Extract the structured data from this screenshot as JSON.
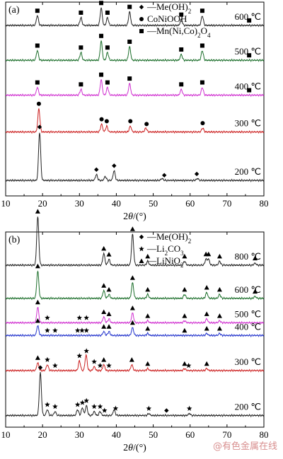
{
  "watermark": "@有色金属在线",
  "chart_data": [
    {
      "type": "line",
      "panel": "(a)",
      "xlabel_prefix": "2",
      "xlabel_theta": "θ",
      "xlabel_suffix": "/(°)",
      "xlim": [
        10,
        80
      ],
      "xticks": [
        10,
        20,
        30,
        40,
        50,
        60,
        70,
        80
      ],
      "legend": [
        {
          "marker": "diamond",
          "label": "—Me(OH)",
          "sub": "2",
          "tail": ""
        },
        {
          "marker": "circle",
          "label": "CoNiOOH",
          "sub": "",
          "tail": ""
        },
        {
          "marker": "square",
          "label": "—Mn(Ni,Co)",
          "sub": "2",
          "tail": "O",
          "sub2": "4"
        }
      ],
      "series": [
        {
          "name": "600 ℃",
          "color": "#222222",
          "baseline": 0.88,
          "peaks": [
            [
              18.6,
              0.05
            ],
            [
              30.4,
              0.04
            ],
            [
              35.9,
              0.09
            ],
            [
              37.6,
              0.04
            ],
            [
              43.6,
              0.07
            ],
            [
              57.6,
              0.03
            ],
            [
              63.3,
              0.05
            ]
          ],
          "markers": {
            "type": "square",
            "x": [
              18.6,
              30.4,
              35.9,
              37.6,
              43.6,
              57.6,
              63.3,
              76.0
            ]
          }
        },
        {
          "name": "500 ℃",
          "color": "#1b6e2a",
          "baseline": 0.7,
          "peaks": [
            [
              18.6,
              0.05
            ],
            [
              30.4,
              0.04
            ],
            [
              35.9,
              0.1
            ],
            [
              37.6,
              0.04
            ],
            [
              43.6,
              0.07
            ],
            [
              57.6,
              0.03
            ],
            [
              63.3,
              0.05
            ]
          ],
          "markers": {
            "type": "square",
            "x": [
              18.6,
              30.4,
              35.9,
              37.6,
              43.6,
              57.6,
              63.3,
              76.0
            ]
          }
        },
        {
          "name": "400 ℃",
          "color": "#d030d0",
          "baseline": 0.52,
          "peaks": [
            [
              18.6,
              0.04
            ],
            [
              30.4,
              0.03
            ],
            [
              35.9,
              0.08
            ],
            [
              37.6,
              0.04
            ],
            [
              43.6,
              0.06
            ],
            [
              57.6,
              0.03
            ],
            [
              63.3,
              0.04
            ]
          ],
          "markers": {
            "type": "square",
            "x": [
              18.6,
              30.4,
              35.9,
              37.6,
              43.6,
              57.6,
              63.3,
              76.0
            ]
          }
        },
        {
          "name": "300 ℃",
          "color": "#cc2222",
          "baseline": 0.33,
          "peaks": [
            [
              19.0,
              0.12
            ],
            [
              36.0,
              0.04
            ],
            [
              37.4,
              0.03
            ],
            [
              43.8,
              0.03
            ],
            [
              48.0,
              0.02
            ],
            [
              63.4,
              0.02
            ]
          ],
          "markers": {
            "type": "circle",
            "x": [
              19.0,
              36.0,
              37.4,
              43.8,
              48.2,
              63.4
            ]
          }
        },
        {
          "name": "200 ℃",
          "color": "#222222",
          "baseline": 0.08,
          "peaks": [
            [
              19.2,
              0.25
            ],
            [
              34.6,
              0.03
            ],
            [
              37.0,
              0.02
            ],
            [
              39.4,
              0.05
            ],
            [
              52.4,
              0.01
            ],
            [
              62.0,
              0.01
            ]
          ],
          "markers": {
            "type": "diamond",
            "x": [
              19.2,
              34.6,
              39.4,
              53.0,
              61.8
            ]
          }
        }
      ]
    },
    {
      "type": "line",
      "panel": "(b)",
      "xlabel_prefix": "2",
      "xlabel_theta": "θ",
      "xlabel_suffix": "/(°)",
      "xlim": [
        10,
        80
      ],
      "xticks": [
        10,
        20,
        30,
        40,
        50,
        60,
        70,
        80
      ],
      "legend": [
        {
          "marker": "diamond",
          "label": "—Me(OH)",
          "sub": "2",
          "tail": ""
        },
        {
          "marker": "star",
          "label": "—Li",
          "sub": "2",
          "tail": "CO",
          "sub2": "3"
        },
        {
          "marker": "triangle",
          "label": "—LiNiO",
          "sub": "2",
          "tail": ""
        }
      ],
      "series": [
        {
          "name": "800 ℃",
          "color": "#222222",
          "baseline": 0.83,
          "peaks": [
            [
              18.7,
              0.25
            ],
            [
              36.6,
              0.06
            ],
            [
              38.0,
              0.03
            ],
            [
              44.4,
              0.16
            ],
            [
              48.5,
              0.02
            ],
            [
              58.5,
              0.02
            ],
            [
              64.3,
              0.03
            ],
            [
              65.0,
              0.03
            ],
            [
              68.0,
              0.02
            ],
            [
              77.6,
              0.01
            ]
          ],
          "markers": {
            "type": "triangle",
            "x": [
              18.7,
              36.6,
              38.0,
              44.4,
              48.5,
              58.5,
              64.3,
              65.0,
              68.0,
              77.6
            ]
          }
        },
        {
          "name": "600 ℃",
          "color": "#1b6e2a",
          "baseline": 0.66,
          "peaks": [
            [
              18.7,
              0.14
            ],
            [
              36.6,
              0.04
            ],
            [
              38.0,
              0.02
            ],
            [
              44.4,
              0.08
            ],
            [
              48.5,
              0.02
            ],
            [
              58.5,
              0.02
            ],
            [
              64.5,
              0.03
            ],
            [
              68.0,
              0.02
            ],
            [
              77.6,
              0.01
            ]
          ],
          "markers": {
            "type": "triangle",
            "x": [
              18.7,
              36.6,
              38.0,
              44.4,
              48.5,
              58.5,
              64.5,
              68.0,
              77.6
            ]
          }
        },
        {
          "name": "500 ℃",
          "color": "#d030d0",
          "baseline": 0.535,
          "peaks": [
            [
              18.7,
              0.08
            ],
            [
              36.6,
              0.03
            ],
            [
              38.0,
              0.02
            ],
            [
              44.4,
              0.05
            ],
            [
              48.5,
              0.01
            ],
            [
              58.5,
              0.01
            ],
            [
              64.5,
              0.02
            ],
            [
              68.0,
              0.01
            ]
          ],
          "markers": {
            "type": "triangle",
            "x": [
              18.7,
              36.6,
              38.0,
              44.4,
              48.5,
              58.5,
              64.5,
              68.0
            ]
          },
          "markers2": {
            "type": "star",
            "x": [
              21.3,
              30.0,
              31.9
            ]
          }
        },
        {
          "name": "400 ℃",
          "color": "#2233cc",
          "baseline": 0.47,
          "peaks": [
            [
              18.7,
              0.05
            ],
            [
              36.6,
              0.02
            ],
            [
              38.0,
              0.02
            ],
            [
              44.4,
              0.04
            ],
            [
              48.5,
              0.01
            ],
            [
              64.5,
              0.01
            ],
            [
              68.0,
              0.01
            ]
          ],
          "markers": {
            "type": "triangle",
            "x": [
              18.7,
              36.6,
              38.0,
              44.4,
              48.5,
              58.5,
              64.5,
              68.0
            ]
          },
          "markers2": {
            "type": "star",
            "x": [
              21.3,
              23.4,
              29.5,
              30.7,
              31.9
            ]
          }
        },
        {
          "name": "300 ℃",
          "color": "#cc2222",
          "baseline": 0.29,
          "peaks": [
            [
              18.7,
              0.04
            ],
            [
              21.3,
              0.03
            ],
            [
              30.0,
              0.05
            ],
            [
              31.8,
              0.08
            ],
            [
              34.0,
              0.02
            ],
            [
              36.6,
              0.03
            ],
            [
              44.2,
              0.03
            ],
            [
              48.5,
              0.01
            ],
            [
              58.5,
              0.01
            ],
            [
              64.5,
              0.01
            ]
          ],
          "markers": {
            "type": "triangle",
            "x": [
              18.7,
              36.6,
              44.2,
              48.5,
              58.5,
              64.5
            ]
          },
          "markers2": {
            "type": "star",
            "x": [
              21.3,
              23.4,
              30.0,
              31.9,
              34.0,
              35.6,
              38.0,
              59.6
            ]
          }
        },
        {
          "name": "200 ℃",
          "color": "#222222",
          "baseline": 0.06,
          "peaks": [
            [
              19.4,
              0.22
            ],
            [
              21.3,
              0.03
            ],
            [
              23.4,
              0.02
            ],
            [
              29.5,
              0.03
            ],
            [
              30.8,
              0.04
            ],
            [
              31.9,
              0.05
            ],
            [
              34.0,
              0.02
            ],
            [
              35.6,
              0.02
            ],
            [
              39.4,
              0.03
            ],
            [
              48.8,
              0.01
            ],
            [
              59.8,
              0.01
            ]
          ],
          "markers": {
            "type": "diamond",
            "x": [
              19.4,
              53.6
            ]
          },
          "markers2": {
            "type": "star",
            "x": [
              21.3,
              23.4,
              29.5,
              30.8,
              31.9,
              34.0,
              35.6,
              36.8,
              39.8,
              48.8,
              59.8
            ]
          }
        }
      ]
    }
  ]
}
